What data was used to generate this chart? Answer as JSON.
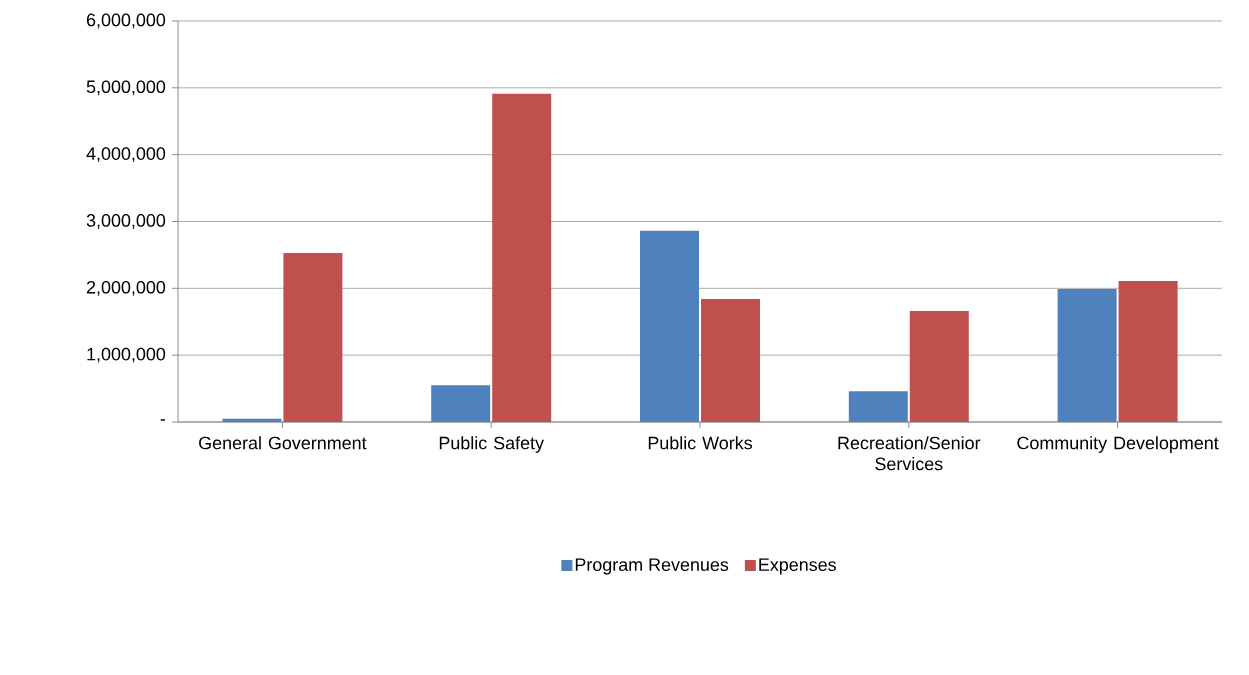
{
  "chart_data": {
    "type": "bar",
    "categories": [
      "General Government",
      "Public Safety",
      "Public Works",
      "Recreation/Senior Services",
      "Community Development"
    ],
    "series": [
      {
        "name": "Program Revenues",
        "color": "#4f81bd",
        "values": [
          50000,
          550000,
          2860000,
          460000,
          1990000
        ]
      },
      {
        "name": "Expenses",
        "color": "#c0504d",
        "values": [
          2530000,
          4910000,
          1840000,
          1660000,
          2110000
        ]
      }
    ],
    "ylim": [
      0,
      6000000
    ],
    "yticks": [
      {
        "value": 0,
        "label": "-"
      },
      {
        "value": 1000000,
        "label": "1,000,000"
      },
      {
        "value": 2000000,
        "label": "2,000,000"
      },
      {
        "value": 3000000,
        "label": "3,000,000"
      },
      {
        "value": 4000000,
        "label": "4,000,000"
      },
      {
        "value": 5000000,
        "label": "5,000,000"
      },
      {
        "value": 6000000,
        "label": "6,000,000"
      }
    ],
    "grid": "y",
    "legend": "bottom"
  }
}
